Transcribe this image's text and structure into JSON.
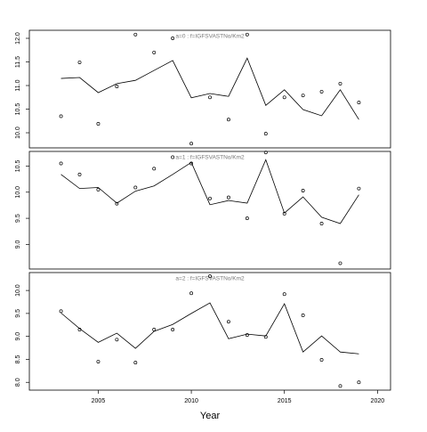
{
  "chart_data": [
    {
      "type": "line",
      "title": "a=0 : f=IGFSVASTNo/Km2",
      "x": [
        2003,
        2004,
        2005,
        2006,
        2007,
        2008,
        2009,
        2010,
        2011,
        2012,
        2013,
        2014,
        2015,
        2016,
        2017,
        2018,
        2019
      ],
      "xlim": [
        2001.3,
        2020.7
      ],
      "ylim": [
        9.68,
        12.17
      ],
      "yticks": [
        10.0,
        10.5,
        11.0,
        11.5,
        12.0
      ],
      "series": [
        {
          "style": "points",
          "color": "#000000",
          "values": [
            10.35,
            11.49,
            10.19,
            10.98,
            12.08,
            11.7,
            12.0,
            9.77,
            10.75,
            10.28,
            12.08,
            9.98,
            10.75,
            10.79,
            10.87,
            11.04,
            10.64
          ]
        },
        {
          "style": "line",
          "color": "#000000",
          "values": [
            11.15,
            11.17,
            10.85,
            11.04,
            11.11,
            11.32,
            11.53,
            10.74,
            10.83,
            10.77,
            11.58,
            10.58,
            10.91,
            10.49,
            10.36,
            10.91,
            10.28
          ]
        }
      ]
    },
    {
      "type": "line",
      "title": "a=1 : f=IGFSVASTNo/Km2",
      "x": [
        2003,
        2004,
        2005,
        2006,
        2007,
        2008,
        2009,
        2010,
        2011,
        2012,
        2013,
        2014,
        2015,
        2016,
        2017,
        2018,
        2019
      ],
      "xlim": [
        2001.3,
        2020.7
      ],
      "ylim": [
        8.53,
        10.78
      ],
      "yticks": [
        9.0,
        9.5,
        10.0,
        10.5
      ],
      "series": [
        {
          "style": "points",
          "color": "#000000",
          "values": [
            10.55,
            10.34,
            10.05,
            9.78,
            10.09,
            10.45,
            10.67,
            10.55,
            9.88,
            9.9,
            9.5,
            10.76,
            9.59,
            10.03,
            9.4,
            8.64,
            10.07
          ]
        },
        {
          "style": "line",
          "color": "#000000",
          "values": [
            10.34,
            10.07,
            10.09,
            9.79,
            10.02,
            10.12,
            10.34,
            10.57,
            9.76,
            9.84,
            9.79,
            10.62,
            9.6,
            9.91,
            9.52,
            9.4,
            9.95
          ]
        }
      ]
    },
    {
      "type": "line",
      "title": "a=2 : f=IGFSVASTNo/Km2",
      "xlabel": "Year",
      "x": [
        2003,
        2004,
        2005,
        2006,
        2007,
        2008,
        2009,
        2010,
        2011,
        2012,
        2013,
        2014,
        2015,
        2016,
        2017,
        2018,
        2019
      ],
      "xlim": [
        2001.3,
        2020.7
      ],
      "xticks": [
        2005,
        2010,
        2015,
        2020
      ],
      "ylim": [
        7.83,
        10.39
      ],
      "yticks": [
        8.0,
        8.5,
        9.0,
        9.5,
        10.0
      ],
      "series": [
        {
          "style": "points",
          "color": "#000000",
          "values": [
            9.55,
            9.15,
            8.45,
            8.93,
            8.43,
            9.15,
            9.15,
            9.94,
            10.31,
            9.32,
            9.03,
            8.99,
            9.92,
            9.46,
            8.49,
            7.92,
            8.0
          ]
        },
        {
          "style": "line",
          "color": "#000000",
          "values": [
            9.51,
            9.17,
            8.87,
            9.07,
            8.74,
            9.11,
            9.26,
            9.5,
            9.73,
            8.95,
            9.05,
            9.01,
            9.71,
            8.66,
            9.01,
            8.66,
            8.62
          ]
        }
      ]
    }
  ]
}
